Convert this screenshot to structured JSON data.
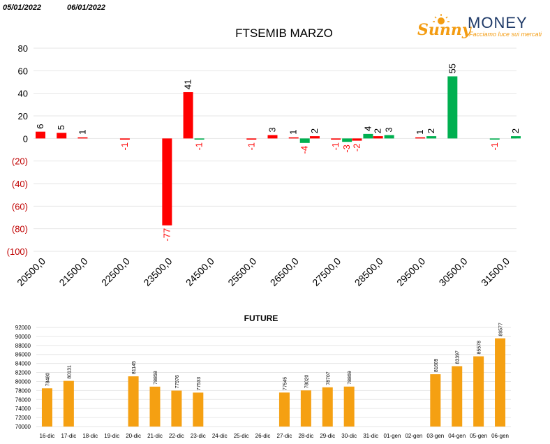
{
  "header": {
    "date_left": "05/01/2022",
    "date_right": "06/01/2022"
  },
  "logo": {
    "brand_script": "Sunny",
    "brand_caps": "MONEY",
    "tagline": "Facciamo luce sui mercati",
    "color_orange": "#f39c12",
    "color_navy": "#1f3a68"
  },
  "colors": {
    "positive": "#00b050",
    "negative": "#ff0000",
    "future": "#f5a012",
    "negative_tick": "#c00000"
  },
  "chart_data": [
    {
      "type": "bar",
      "title": "FTSEMIB MARZO",
      "ylim": [
        -100,
        80
      ],
      "yticks": [
        {
          "v": 80,
          "label": "80"
        },
        {
          "v": 60,
          "label": "60"
        },
        {
          "v": 40,
          "label": "40"
        },
        {
          "v": 20,
          "label": "20"
        },
        {
          "v": 0,
          "label": "0"
        },
        {
          "v": -20,
          "label": "(20)"
        },
        {
          "v": -40,
          "label": "(40)"
        },
        {
          "v": -60,
          "label": "(60)"
        },
        {
          "v": -80,
          "label": "(80)"
        },
        {
          "v": -100,
          "label": "(100)"
        }
      ],
      "xticks": [
        "20500,0",
        "21500,0",
        "22500,0",
        "23500,0",
        "24500,0",
        "25500,0",
        "26500,0",
        "27500,0",
        "28500,0",
        "29500,0",
        "30500,0",
        "31500,0"
      ],
      "xlim": [
        20500,
        31500
      ],
      "bars": [
        {
          "strike": 20500,
          "series": "red",
          "value": 6
        },
        {
          "strike": 21000,
          "series": "red",
          "value": 5
        },
        {
          "strike": 21500,
          "series": "red",
          "value": 1
        },
        {
          "strike": 22500,
          "series": "red",
          "value": -1
        },
        {
          "strike": 23500,
          "series": "red",
          "value": -77
        },
        {
          "strike": 24000,
          "series": "red",
          "value": 41
        },
        {
          "strike": 24000,
          "series": "green",
          "value": -1
        },
        {
          "strike": 25500,
          "series": "red",
          "value": -1
        },
        {
          "strike": 26000,
          "series": "red",
          "value": 3
        },
        {
          "strike": 26500,
          "series": "red",
          "value": 1
        },
        {
          "strike": 26500,
          "series": "green",
          "value": -4
        },
        {
          "strike": 27000,
          "series": "red",
          "value": 2
        },
        {
          "strike": 27500,
          "series": "red",
          "value": -1
        },
        {
          "strike": 27500,
          "series": "green",
          "value": -3
        },
        {
          "strike": 28000,
          "series": "red",
          "value": -2
        },
        {
          "strike": 28000,
          "series": "green",
          "value": 4
        },
        {
          "strike": 28500,
          "series": "red",
          "value": 2
        },
        {
          "strike": 28500,
          "series": "green",
          "value": 3
        },
        {
          "strike": 29500,
          "series": "green",
          "value": 2
        },
        {
          "strike": 29500,
          "series": "red",
          "value": 1
        },
        {
          "strike": 30000,
          "series": "green",
          "value": 55
        },
        {
          "strike": 31000,
          "series": "green",
          "value": -1
        },
        {
          "strike": 31500,
          "series": "green",
          "value": 2
        }
      ]
    },
    {
      "type": "bar",
      "title": "FUTURE",
      "ylim": [
        70000,
        92000
      ],
      "yticks": [
        92000,
        90000,
        88000,
        86000,
        84000,
        82000,
        80000,
        78000,
        76000,
        74000,
        72000,
        70000
      ],
      "categories": [
        "16-dic",
        "17-dic",
        "18-dic",
        "19-dic",
        "20-dic",
        "21-dic",
        "22-dic",
        "23-dic",
        "24-dic",
        "25-dic",
        "26-dic",
        "27-dic",
        "28-dic",
        "29-dic",
        "30-dic",
        "31-dic",
        "01-gen",
        "02-gen",
        "03-gen",
        "04-gen",
        "05-gen",
        "06-gen"
      ],
      "values": [
        78480,
        80131,
        null,
        null,
        81145,
        78858,
        77976,
        77533,
        null,
        null,
        null,
        77545,
        78020,
        78707,
        78869,
        null,
        null,
        null,
        81609,
        83397,
        85578,
        89577
      ]
    }
  ]
}
